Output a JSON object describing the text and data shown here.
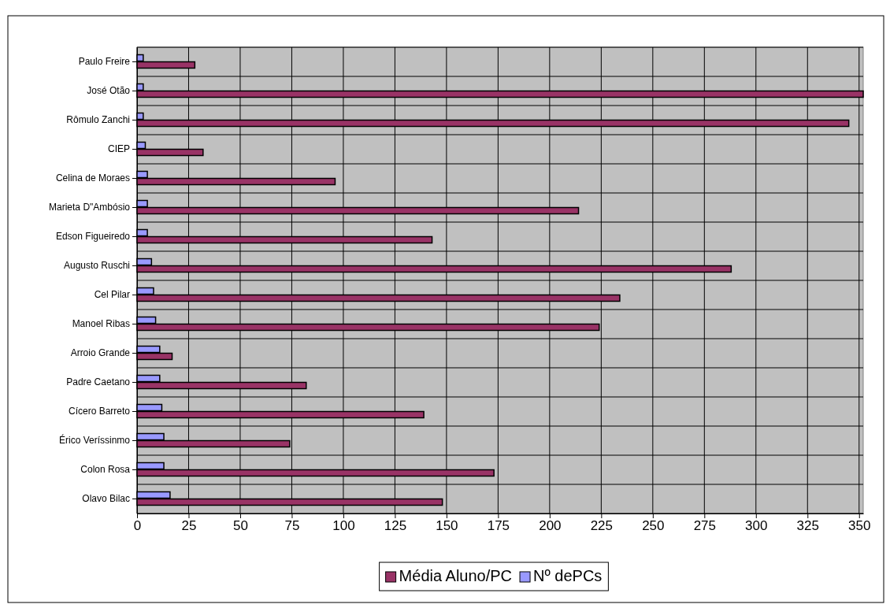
{
  "chart_data": {
    "type": "bar",
    "orientation": "horizontal",
    "categories": [
      "Paulo Freire",
      "José Otão",
      "Rômulo Zanchi",
      "CIEP",
      "Celina de Moraes",
      "Marieta D\"Ambósio",
      "Edson Figueiredo",
      "Augusto Ruschi",
      "Cel Pilar",
      "Manoel Ribas",
      "Arroio Grande",
      "Padre Caetano",
      "Cícero Barreto",
      "Érico Veríssinmo",
      "Colon Rosa",
      "Olavo Bilac"
    ],
    "series": [
      {
        "name": "Média Aluno/PC",
        "color": "#993366",
        "values": [
          28,
          352,
          345,
          32,
          96,
          214,
          143,
          288,
          234,
          224,
          17,
          82,
          139,
          74,
          173,
          148
        ]
      },
      {
        "name": "Nº dePCs",
        "color": "#9999ff",
        "values": [
          3,
          3,
          3,
          4,
          5,
          5,
          5,
          7,
          8,
          9,
          11,
          11,
          12,
          13,
          13,
          16
        ]
      }
    ],
    "xlim": [
      0,
      352
    ],
    "xticks": [
      0,
      25,
      50,
      75,
      100,
      125,
      150,
      175,
      200,
      225,
      250,
      275,
      300,
      325,
      350
    ],
    "grid": true,
    "legend": "bottom"
  }
}
